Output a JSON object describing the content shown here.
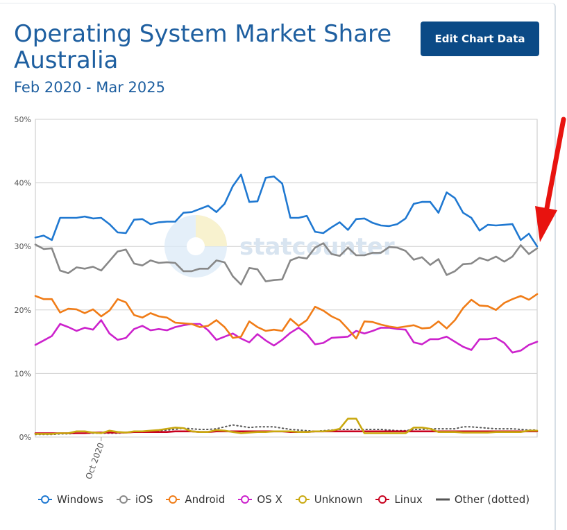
{
  "header": {
    "title": "Operating System Market Share Australia",
    "subtitle": "Feb 2020 - Mar 2025",
    "edit_button": "Edit Chart Data"
  },
  "watermark": "statcounter",
  "chart_data": {
    "type": "line",
    "x_start": "2020-02",
    "x_end": "2025-03",
    "x_tick_labels": [
      "Oct 2020"
    ],
    "y_tick_labels": [
      "0%",
      "10%",
      "20%",
      "30%",
      "40%",
      "50%"
    ],
    "ylim": [
      0,
      50
    ],
    "grid": true,
    "legend_position": "bottom",
    "series": [
      {
        "name": "Windows",
        "color": "#1f78d1",
        "dotted": false,
        "values": [
          31.4,
          31.7,
          31.0,
          34.5,
          34.5,
          34.5,
          34.7,
          34.4,
          34.5,
          33.5,
          32.2,
          32.1,
          34.2,
          34.3,
          33.5,
          33.8,
          33.9,
          33.9,
          35.3,
          35.4,
          35.9,
          36.4,
          35.4,
          36.7,
          39.5,
          41.3,
          37.0,
          37.1,
          40.8,
          41.0,
          39.9,
          34.5,
          34.5,
          34.8,
          32.3,
          32.1,
          33.0,
          33.8,
          32.6,
          34.3,
          34.4,
          33.7,
          33.3,
          33.2,
          33.5,
          34.4,
          36.7,
          37.0,
          37.0,
          35.3,
          38.5,
          37.6,
          35.3,
          34.5,
          32.5,
          33.4,
          33.3,
          33.4,
          33.5,
          31.0,
          32.0,
          30.0
        ]
      },
      {
        "name": "iOS",
        "color": "#888888",
        "dotted": false,
        "values": [
          30.3,
          29.6,
          29.7,
          26.2,
          25.8,
          26.7,
          26.5,
          26.8,
          26.2,
          27.7,
          29.2,
          29.5,
          27.3,
          27.0,
          27.8,
          27.4,
          27.5,
          27.4,
          26.1,
          26.1,
          26.5,
          26.5,
          27.8,
          27.5,
          25.3,
          24.0,
          26.6,
          26.4,
          24.5,
          24.7,
          24.8,
          27.8,
          28.3,
          28.1,
          29.8,
          30.5,
          28.8,
          28.5,
          29.8,
          28.6,
          28.6,
          29.0,
          29.0,
          29.9,
          29.8,
          29.3,
          27.9,
          28.3,
          27.1,
          28.0,
          25.5,
          26.1,
          27.2,
          27.3,
          28.2,
          27.8,
          28.4,
          27.6,
          28.4,
          30.2,
          28.8,
          29.7
        ]
      },
      {
        "name": "Android",
        "color": "#f07c17",
        "dotted": false,
        "values": [
          22.2,
          21.7,
          21.7,
          19.6,
          20.2,
          20.1,
          19.5,
          20.1,
          19.0,
          19.9,
          21.7,
          21.2,
          19.2,
          18.8,
          19.5,
          19.0,
          18.8,
          18.0,
          17.9,
          17.8,
          17.3,
          17.5,
          18.4,
          17.3,
          15.6,
          15.8,
          18.2,
          17.3,
          16.7,
          16.9,
          16.7,
          18.6,
          17.5,
          18.4,
          20.5,
          19.9,
          19.0,
          18.4,
          17.0,
          15.5,
          18.2,
          18.1,
          17.7,
          17.4,
          17.2,
          17.4,
          17.6,
          17.1,
          17.2,
          18.2,
          17.1,
          18.4,
          20.3,
          21.6,
          20.7,
          20.6,
          20.0,
          21.1,
          21.7,
          22.2,
          21.6,
          22.5
        ]
      },
      {
        "name": "OS X",
        "color": "#cc22cc",
        "dotted": false,
        "values": [
          14.5,
          15.2,
          15.9,
          17.8,
          17.3,
          16.7,
          17.2,
          16.9,
          18.4,
          16.3,
          15.3,
          15.6,
          17.0,
          17.5,
          16.8,
          17.0,
          16.8,
          17.3,
          17.6,
          17.8,
          17.8,
          16.8,
          15.3,
          15.8,
          16.3,
          15.5,
          14.9,
          16.2,
          15.2,
          14.4,
          15.3,
          16.4,
          17.2,
          16.2,
          14.6,
          14.8,
          15.6,
          15.7,
          15.8,
          16.7,
          16.3,
          16.7,
          17.2,
          17.2,
          17.0,
          16.9,
          14.9,
          14.6,
          15.4,
          15.4,
          15.8,
          15.0,
          14.2,
          13.7,
          15.4,
          15.4,
          15.6,
          14.8,
          13.3,
          13.6,
          14.5,
          15.0
        ]
      },
      {
        "name": "Unknown",
        "color": "#c9a80f",
        "dotted": false,
        "values": [
          0.5,
          0.5,
          0.5,
          0.6,
          0.6,
          0.9,
          0.9,
          0.7,
          0.6,
          1.0,
          0.8,
          0.7,
          0.9,
          0.9,
          1.0,
          1.1,
          1.3,
          1.5,
          1.4,
          0.9,
          0.8,
          0.8,
          1.1,
          1.0,
          0.8,
          0.6,
          0.7,
          0.8,
          0.8,
          0.9,
          0.9,
          0.9,
          0.8,
          0.8,
          0.9,
          0.9,
          1.0,
          1.3,
          2.9,
          2.9,
          0.6,
          0.6,
          0.6,
          0.6,
          0.6,
          0.6,
          1.5,
          1.5,
          1.3,
          0.8,
          0.8,
          0.8,
          0.7,
          0.7,
          0.7,
          0.7,
          0.8,
          0.8,
          0.8,
          0.8,
          1.0,
          1.0
        ]
      },
      {
        "name": "Linux",
        "color": "#c8001e",
        "dotted": false,
        "values": [
          0.6,
          0.6,
          0.6,
          0.6,
          0.6,
          0.6,
          0.6,
          0.7,
          0.7,
          0.7,
          0.7,
          0.7,
          0.8,
          0.8,
          0.8,
          0.8,
          0.8,
          0.9,
          0.9,
          0.9,
          0.8,
          0.8,
          0.9,
          0.9,
          0.9,
          0.9,
          0.9,
          0.9,
          0.9,
          0.9,
          0.9,
          0.8,
          0.8,
          0.8,
          0.9,
          0.9,
          0.9,
          0.9,
          0.9,
          0.9,
          0.9,
          0.9,
          0.9,
          0.9,
          0.9,
          0.9,
          0.9,
          0.9,
          0.9,
          0.9,
          0.9,
          0.9,
          0.9,
          0.9,
          0.9,
          0.9,
          0.9,
          0.9,
          0.9,
          0.9,
          0.9,
          0.9
        ]
      },
      {
        "name": "Other (dotted)",
        "color": "#555555",
        "dotted": true,
        "values": [
          0.4,
          0.4,
          0.4,
          0.5,
          0.5,
          0.6,
          0.6,
          0.6,
          0.6,
          0.6,
          0.6,
          0.7,
          0.8,
          0.9,
          0.9,
          1.0,
          1.1,
          1.2,
          1.4,
          1.3,
          1.2,
          1.2,
          1.3,
          1.6,
          1.9,
          1.7,
          1.5,
          1.6,
          1.6,
          1.6,
          1.4,
          1.2,
          1.1,
          1.0,
          0.9,
          1.0,
          1.1,
          1.2,
          1.2,
          1.2,
          1.2,
          1.2,
          1.2,
          1.1,
          1.0,
          1.0,
          1.2,
          1.2,
          1.3,
          1.3,
          1.3,
          1.3,
          1.6,
          1.6,
          1.5,
          1.4,
          1.3,
          1.3,
          1.3,
          1.2,
          1.1,
          1.1
        ]
      }
    ]
  }
}
